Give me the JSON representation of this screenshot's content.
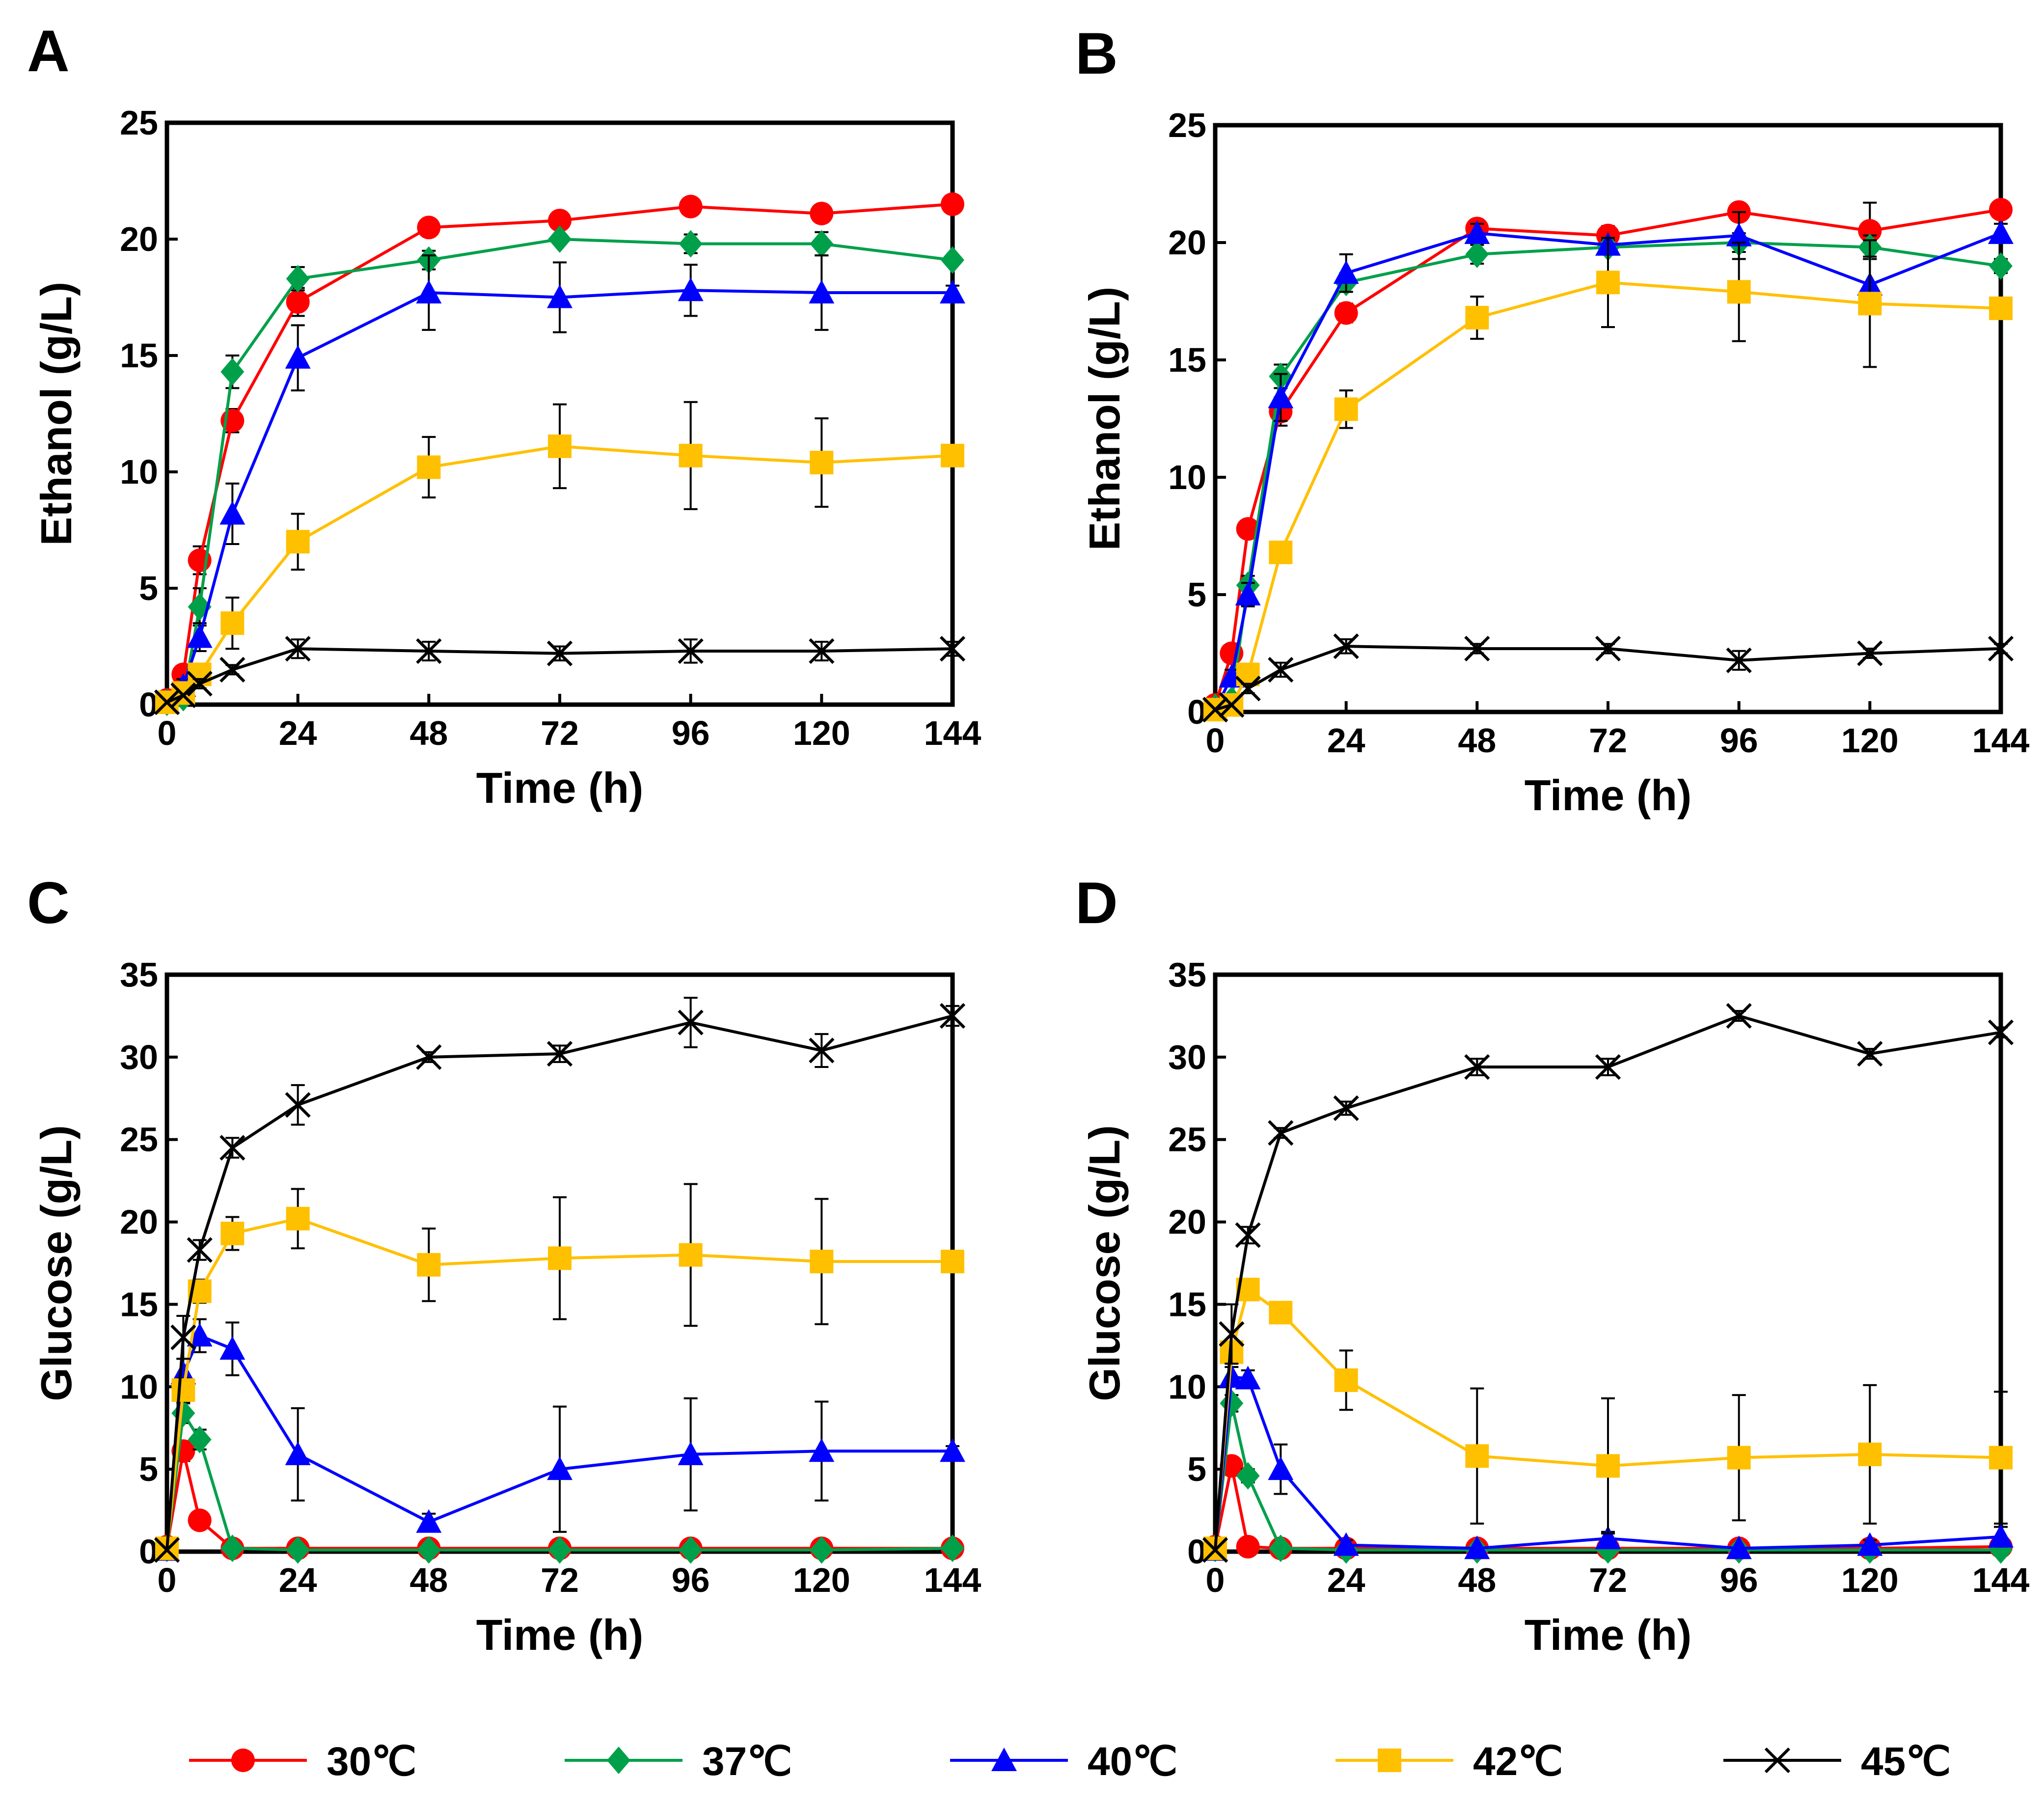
{
  "figure": {
    "legend_title": ""
  },
  "series_styles": [
    {
      "name": "30℃",
      "color": "#ff0000",
      "marker": "circle"
    },
    {
      "name": "37℃",
      "color": "#00a04a",
      "marker": "diamond"
    },
    {
      "name": "40℃",
      "color": "#0000ff",
      "marker": "triangle"
    },
    {
      "name": "42℃",
      "color": "#ffc000",
      "marker": "square"
    },
    {
      "name": "45℃",
      "color": "#000000",
      "marker": "x"
    }
  ],
  "legend": {
    "entries": [
      "30℃",
      "37℃",
      "40℃",
      "42℃",
      "45℃"
    ],
    "placement": "bottom"
  },
  "chart_data": [
    {
      "panel": "A",
      "type": "line",
      "title": "",
      "xlabel": "Time (h)",
      "ylabel": "Ethanol (g/L)",
      "xlim": [
        0,
        144
      ],
      "ylim": [
        0,
        25
      ],
      "xticks": [
        0,
        24,
        48,
        72,
        96,
        120,
        144
      ],
      "yticks": [
        0,
        5,
        10,
        15,
        20,
        25
      ],
      "x": [
        0,
        3,
        6,
        12,
        24,
        48,
        72,
        96,
        120,
        144
      ],
      "series": [
        {
          "name": "30℃",
          "values": [
            0.2,
            1.3,
            6.2,
            12.2,
            17.3,
            20.5,
            20.8,
            21.4,
            21.1,
            21.5
          ],
          "errors": [
            0.1,
            0.2,
            0.6,
            0.5,
            0.6,
            0.3,
            0.3,
            0.3,
            0.3,
            0.2
          ]
        },
        {
          "name": "37℃",
          "values": [
            0.1,
            0.3,
            4.2,
            14.3,
            18.3,
            19.1,
            20.0,
            19.8,
            19.8,
            19.1
          ],
          "errors": [
            0.1,
            0.2,
            0.8,
            0.7,
            0.5,
            0.4,
            0.2,
            0.4,
            0.5,
            0.2
          ]
        },
        {
          "name": "40℃",
          "values": [
            0.1,
            0.8,
            2.9,
            8.2,
            14.9,
            17.7,
            17.5,
            17.8,
            17.7,
            17.7
          ],
          "errors": [
            0.1,
            0.3,
            0.6,
            1.3,
            1.4,
            1.6,
            1.5,
            1.1,
            1.6,
            0.3
          ]
        },
        {
          "name": "42℃",
          "values": [
            0.1,
            0.5,
            1.3,
            3.5,
            7.0,
            10.2,
            11.1,
            10.7,
            10.4,
            10.7
          ],
          "errors": [
            0.1,
            0.2,
            0.4,
            1.1,
            1.2,
            1.3,
            1.8,
            2.3,
            1.9,
            0.3
          ]
        },
        {
          "name": "45℃",
          "values": [
            0.1,
            0.4,
            0.9,
            1.5,
            2.4,
            2.3,
            2.2,
            2.3,
            2.3,
            2.4
          ],
          "errors": [
            0.1,
            0.1,
            0.2,
            0.2,
            0.4,
            0.4,
            0.3,
            0.5,
            0.4,
            0.3
          ]
        }
      ]
    },
    {
      "panel": "B",
      "type": "line",
      "title": "",
      "xlabel": "Time (h)",
      "ylabel": "Ethanol (g/L)",
      "xlim": [
        0,
        144
      ],
      "ylim": [
        0,
        25
      ],
      "xticks": [
        0,
        24,
        48,
        72,
        96,
        120,
        144
      ],
      "yticks": [
        0,
        5,
        10,
        15,
        20,
        25
      ],
      "x": [
        0,
        3,
        6,
        12,
        24,
        48,
        72,
        96,
        120,
        144
      ],
      "series": [
        {
          "name": "30℃",
          "values": [
            0.3,
            2.5,
            7.8,
            12.8,
            17.0,
            20.6,
            20.3,
            21.3,
            20.5,
            21.4
          ],
          "errors": [
            0.1,
            0.2,
            0.3,
            0.6,
            0.4,
            0.3,
            0.4,
            0.3,
            1.2,
            0.2
          ]
        },
        {
          "name": "37℃",
          "values": [
            0.2,
            0.5,
            5.4,
            14.3,
            18.3,
            19.5,
            19.8,
            20.0,
            19.8,
            19.0
          ],
          "errors": [
            0.1,
            0.2,
            0.4,
            0.5,
            0.4,
            0.4,
            0.3,
            0.4,
            0.5,
            0.3
          ]
        },
        {
          "name": "40℃",
          "values": [
            0.1,
            1.5,
            5.0,
            13.4,
            18.7,
            20.4,
            19.9,
            20.3,
            18.2,
            20.4
          ],
          "errors": [
            0.1,
            0.3,
            0.5,
            1.0,
            0.8,
            0.4,
            0.3,
            1.0,
            1.2,
            0.4
          ]
        },
        {
          "name": "42℃",
          "values": [
            0.1,
            0.3,
            1.6,
            6.8,
            12.9,
            16.8,
            18.3,
            17.9,
            17.4,
            17.2
          ],
          "errors": [
            0.1,
            0.1,
            0.3,
            0.4,
            0.8,
            0.9,
            1.9,
            2.1,
            2.7,
            0.3
          ]
        },
        {
          "name": "45℃",
          "values": [
            0.1,
            0.3,
            1.0,
            1.8,
            2.8,
            2.7,
            2.7,
            2.2,
            2.5,
            2.7
          ],
          "errors": [
            0.1,
            0.1,
            0.2,
            0.3,
            0.3,
            0.2,
            0.2,
            0.4,
            0.2,
            0.2
          ]
        }
      ]
    },
    {
      "panel": "C",
      "type": "line",
      "title": "",
      "xlabel": "Time (h)",
      "ylabel": "Glucose (g/L)",
      "xlim": [
        0,
        144
      ],
      "ylim": [
        0,
        35
      ],
      "xticks": [
        0,
        24,
        48,
        72,
        96,
        120,
        144
      ],
      "yticks": [
        0,
        5,
        10,
        15,
        20,
        25,
        30,
        35
      ],
      "x": [
        0,
        3,
        6,
        12,
        24,
        48,
        72,
        96,
        120,
        144
      ],
      "series": [
        {
          "name": "30℃",
          "values": [
            0.3,
            6.1,
            1.9,
            0.2,
            0.2,
            0.2,
            0.2,
            0.2,
            0.2,
            0.2
          ],
          "errors": [
            0.1,
            0.6,
            0.3,
            0.1,
            0.1,
            0.1,
            0.1,
            0.1,
            0.1,
            0.1
          ]
        },
        {
          "name": "37℃",
          "values": [
            0.2,
            8.4,
            6.8,
            0.2,
            0.1,
            0.1,
            0.1,
            0.1,
            0.1,
            0.2
          ],
          "errors": [
            0.1,
            0.6,
            0.6,
            0.1,
            0.1,
            0.1,
            0.1,
            0.1,
            0.1,
            0.1
          ]
        },
        {
          "name": "40℃",
          "values": [
            0.1,
            10.8,
            13.1,
            12.3,
            5.9,
            1.8,
            5.0,
            5.9,
            6.1,
            6.1
          ],
          "errors": [
            0.1,
            0.9,
            1.0,
            1.6,
            2.8,
            0.5,
            3.8,
            3.4,
            3.0,
            0.3
          ]
        },
        {
          "name": "42℃",
          "values": [
            0.2,
            9.8,
            15.8,
            19.3,
            20.2,
            17.4,
            17.8,
            18.0,
            17.6,
            17.6
          ],
          "errors": [
            0.1,
            0.7,
            0.7,
            1.0,
            1.8,
            2.2,
            3.7,
            4.3,
            3.8,
            0.3
          ]
        },
        {
          "name": "45℃",
          "values": [
            0.1,
            13.0,
            18.3,
            24.5,
            27.1,
            30.0,
            30.2,
            32.1,
            30.4,
            32.5
          ],
          "errors": [
            0.1,
            1.3,
            0.6,
            0.6,
            1.2,
            0.3,
            0.5,
            1.5,
            1.0,
            0.6
          ]
        }
      ]
    },
    {
      "panel": "D",
      "type": "line",
      "title": "",
      "xlabel": "Time (h)",
      "ylabel": "Glucose (g/L)",
      "xlim": [
        0,
        144
      ],
      "ylim": [
        0,
        35
      ],
      "xticks": [
        0,
        24,
        48,
        72,
        96,
        120,
        144
      ],
      "yticks": [
        0,
        5,
        10,
        15,
        20,
        25,
        30,
        35
      ],
      "x": [
        0,
        3,
        6,
        12,
        24,
        48,
        72,
        96,
        120,
        144
      ],
      "series": [
        {
          "name": "30℃",
          "values": [
            0.3,
            5.2,
            0.3,
            0.2,
            0.2,
            0.2,
            0.2,
            0.2,
            0.2,
            0.3
          ],
          "errors": [
            0.1,
            0.4,
            0.1,
            0.1,
            0.1,
            0.1,
            0.1,
            0.1,
            0.1,
            0.1
          ]
        },
        {
          "name": "37℃",
          "values": [
            0.2,
            9.0,
            4.6,
            0.2,
            0.1,
            0.1,
            0.1,
            0.1,
            0.1,
            0.1
          ],
          "errors": [
            0.1,
            0.5,
            0.4,
            0.1,
            0.1,
            0.1,
            0.1,
            0.1,
            0.1,
            0.1
          ]
        },
        {
          "name": "40℃",
          "values": [
            0.1,
            10.6,
            10.5,
            5.0,
            0.4,
            0.2,
            0.8,
            0.2,
            0.4,
            0.9
          ],
          "errors": [
            0.1,
            0.6,
            0.5,
            1.5,
            0.3,
            0.1,
            0.4,
            0.1,
            0.3,
            0.6
          ]
        },
        {
          "name": "42℃",
          "values": [
            0.2,
            12.1,
            15.9,
            14.5,
            10.4,
            5.8,
            5.2,
            5.7,
            5.9,
            5.7
          ],
          "errors": [
            0.1,
            0.6,
            0.4,
            0.5,
            1.8,
            4.1,
            4.1,
            3.8,
            4.2,
            4.0
          ]
        },
        {
          "name": "45℃",
          "values": [
            0.1,
            13.2,
            19.2,
            25.4,
            26.9,
            29.4,
            29.4,
            32.5,
            30.2,
            31.5
          ],
          "errors": [
            0.1,
            1.8,
            0.5,
            0.3,
            0.4,
            0.5,
            0.5,
            0.3,
            0.3,
            0.3
          ]
        }
      ]
    }
  ]
}
